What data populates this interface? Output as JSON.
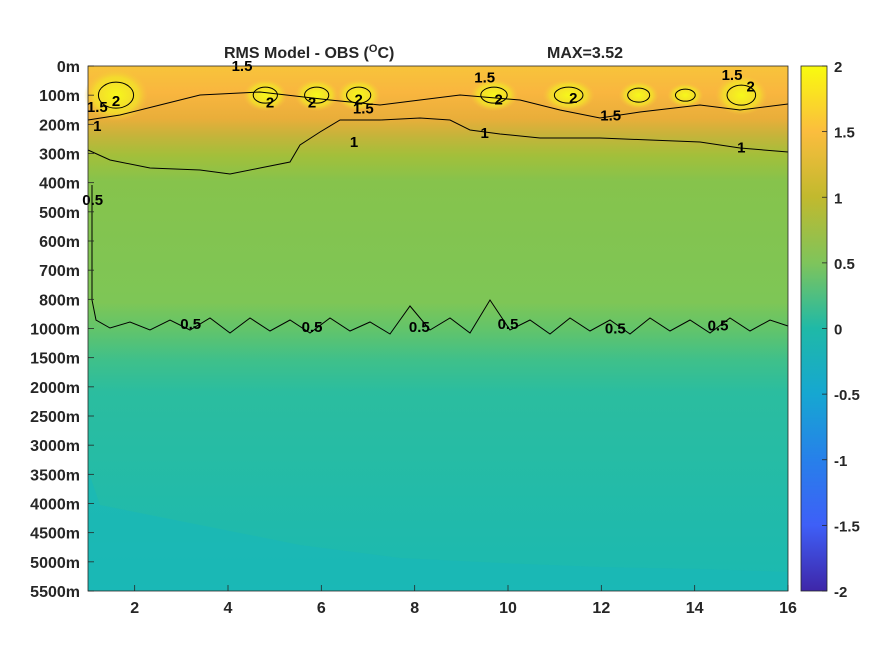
{
  "chart_data": {
    "type": "heatmap",
    "title": "RMS Model - OBS (",
    "title_sup": "O",
    "title_end": "C)",
    "max_label": "MAX=3.52",
    "x_ticks": [
      2,
      4,
      6,
      8,
      10,
      12,
      14,
      16
    ],
    "x_range": [
      1,
      16
    ],
    "y_tick_labels": [
      "0m",
      "100m",
      "200m",
      "300m",
      "400m",
      "500m",
      "600m",
      "700m",
      "800m",
      "1000m",
      "1500m",
      "2000m",
      "2500m",
      "3000m",
      "3500m",
      "4000m",
      "4500m",
      "5000m",
      "5500m"
    ],
    "colorbar": {
      "range": [
        -2,
        2
      ],
      "ticks": [
        "2",
        "1.5",
        "1",
        "0.5",
        "0",
        "-0.5",
        "-1",
        "-1.5",
        "-2"
      ],
      "colormap": "parula"
    },
    "contour_levels": [
      0.5,
      1,
      1.5,
      2
    ],
    "contour_labels": [
      {
        "text": "1.5",
        "x": 4.3,
        "level": 0
      },
      {
        "text": "2",
        "x": 1.6,
        "level": 1.2
      },
      {
        "text": "2",
        "x": 4.9,
        "level": 1.25
      },
      {
        "text": "2",
        "x": 5.8,
        "level": 1.25
      },
      {
        "text": "2",
        "x": 6.8,
        "level": 1.15
      },
      {
        "text": "1.5",
        "x": 6.9,
        "level": 1.45
      },
      {
        "text": "1.5",
        "x": 9.5,
        "level": 0.4
      },
      {
        "text": "2",
        "x": 9.8,
        "level": 1.15
      },
      {
        "text": "2",
        "x": 11.4,
        "level": 1.1
      },
      {
        "text": "1.5",
        "x": 12.2,
        "level": 1.7
      },
      {
        "text": "1.5",
        "x": 14.8,
        "level": 0.3
      },
      {
        "text": "2",
        "x": 15.2,
        "level": 0.7
      },
      {
        "text": "1.5",
        "x": 1.2,
        "level": 1.4
      },
      {
        "text": "1",
        "x": 1.2,
        "level": 2.05
      },
      {
        "text": "1",
        "x": 6.7,
        "level": 2.6
      },
      {
        "text": "1",
        "x": 9.5,
        "level": 2.3
      },
      {
        "text": "1",
        "x": 15.0,
        "level": 2.8
      },
      {
        "text": "0.5",
        "x": 1.1,
        "level": 4.6
      },
      {
        "text": "0.5",
        "x": 3.2,
        "level": 8.85
      },
      {
        "text": "0.5",
        "x": 5.8,
        "level": 8.95
      },
      {
        "text": "0.5",
        "x": 8.1,
        "level": 8.95
      },
      {
        "text": "0.5",
        "x": 10.0,
        "level": 8.85
      },
      {
        "text": "0.5",
        "x": 12.3,
        "level": 9.0
      },
      {
        "text": "0.5",
        "x": 14.5,
        "level": 8.9
      }
    ]
  }
}
